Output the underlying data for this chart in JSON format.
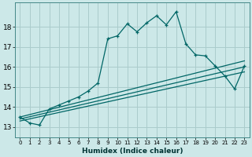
{
  "title": "",
  "xlabel": "Humidex (Indice chaleur)",
  "bg_color": "#cce8e8",
  "grid_color": "#aacccc",
  "line_color": "#006666",
  "xlim": [
    -0.5,
    23.5
  ],
  "ylim": [
    12.5,
    19.2
  ],
  "yticks": [
    13,
    14,
    15,
    16,
    17,
    18
  ],
  "xticks": [
    0,
    1,
    2,
    3,
    4,
    5,
    6,
    7,
    8,
    9,
    10,
    11,
    12,
    13,
    14,
    15,
    16,
    17,
    18,
    19,
    20,
    21,
    22,
    23
  ],
  "main_x": [
    0,
    1,
    2,
    3,
    4,
    5,
    6,
    7,
    8,
    9,
    10,
    11,
    12,
    13,
    14,
    15,
    16,
    17,
    18,
    19,
    20,
    21,
    22,
    23
  ],
  "main_y": [
    13.5,
    13.2,
    13.1,
    13.9,
    14.1,
    14.3,
    14.5,
    14.8,
    15.2,
    17.4,
    17.55,
    18.15,
    17.75,
    18.2,
    18.55,
    18.1,
    18.75,
    17.15,
    16.6,
    16.55,
    16.05,
    15.55,
    14.9,
    16.05
  ],
  "trend1_x": [
    0,
    23
  ],
  "trend1_y": [
    13.4,
    16.0
  ],
  "trend2_x": [
    0,
    23
  ],
  "trend2_y": [
    13.3,
    15.75
  ],
  "trend3_x": [
    0,
    23
  ],
  "trend3_y": [
    13.5,
    16.3
  ]
}
